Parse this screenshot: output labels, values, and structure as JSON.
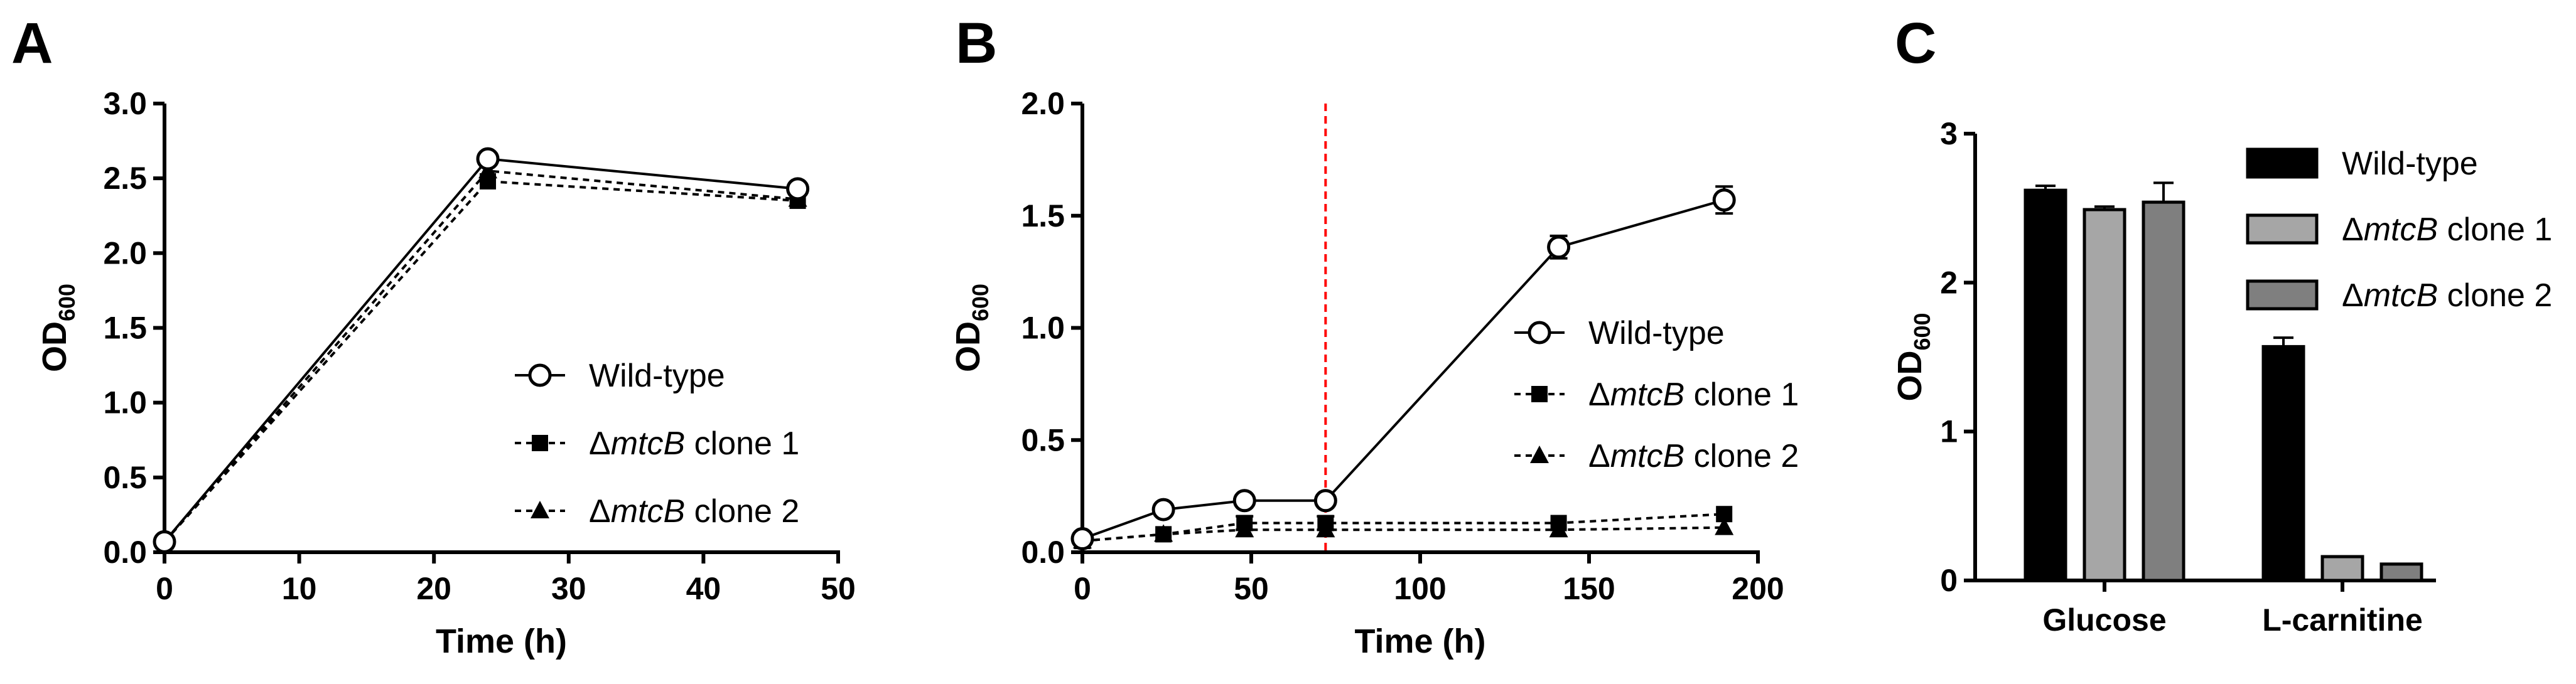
{
  "chart_data": [
    {
      "panel_label": "A",
      "type": "line",
      "xlabel": "Time (h)",
      "ylabel_main": "OD",
      "ylabel_sub": "600",
      "xlim": [
        0,
        50
      ],
      "ylim": [
        0,
        3.0
      ],
      "xticks": [
        "0",
        "10",
        "20",
        "30",
        "40",
        "50"
      ],
      "yticks": [
        "0.0",
        "0.5",
        "1.0",
        "1.5",
        "2.0",
        "2.5",
        "3.0"
      ],
      "series": [
        {
          "name": "Wild-type",
          "marker": "open-circle",
          "dashed": false,
          "x": [
            0,
            24,
            47
          ],
          "y": [
            0.07,
            2.63,
            2.43
          ]
        },
        {
          "name_prefix": "Δ",
          "name_italic": "mtcB",
          "name_suffix": " clone 1",
          "marker": "square",
          "dashed": true,
          "x": [
            0,
            24,
            47
          ],
          "y": [
            0.07,
            2.48,
            2.35
          ]
        },
        {
          "name_prefix": "Δ",
          "name_italic": "mtcB",
          "name_suffix": " clone 2",
          "marker": "triangle",
          "dashed": true,
          "x": [
            0,
            24,
            47
          ],
          "y": [
            0.07,
            2.55,
            2.36
          ]
        }
      ]
    },
    {
      "panel_label": "B",
      "type": "line",
      "xlabel": "Time (h)",
      "ylabel_main": "OD",
      "ylabel_sub": "600",
      "xlim": [
        0,
        200
      ],
      "ylim": [
        0,
        2.0
      ],
      "xticks": [
        "0",
        "50",
        "100",
        "150",
        "200"
      ],
      "yticks": [
        "0.0",
        "0.5",
        "1.0",
        "1.5",
        "2.0"
      ],
      "vline_x": 72,
      "series": [
        {
          "name": "Wild-type",
          "marker": "open-circle",
          "dashed": false,
          "x": [
            0,
            24,
            48,
            72,
            141,
            190
          ],
          "y": [
            0.06,
            0.19,
            0.23,
            0.23,
            1.36,
            1.57
          ],
          "err": [
            0.01,
            0.01,
            0.01,
            0.01,
            0.05,
            0.06
          ]
        },
        {
          "name_prefix": "Δ",
          "name_italic": "mtcB",
          "name_suffix": " clone 1",
          "marker": "square",
          "dashed": true,
          "x": [
            0,
            24,
            48,
            72,
            141,
            190
          ],
          "y": [
            0.05,
            0.08,
            0.13,
            0.13,
            0.13,
            0.17
          ],
          "err": [
            0.01,
            0.01,
            0.03,
            0.03,
            0.02,
            0.02
          ]
        },
        {
          "name_prefix": "Δ",
          "name_italic": "mtcB",
          "name_suffix": " clone 2",
          "marker": "triangle",
          "dashed": true,
          "x": [
            0,
            24,
            48,
            72,
            141,
            190
          ],
          "y": [
            0.05,
            0.08,
            0.1,
            0.1,
            0.1,
            0.11
          ],
          "err": [
            0.01,
            0.01,
            0.01,
            0.02,
            0.01,
            0.02
          ]
        }
      ]
    },
    {
      "panel_label": "C",
      "type": "bar",
      "ylabel_main": "OD",
      "ylabel_sub": "600",
      "ylim": [
        0,
        3
      ],
      "yticks": [
        "0",
        "1",
        "2",
        "3"
      ],
      "categories": [
        "Glucose",
        "L-carnitine"
      ],
      "series": [
        {
          "name": "Wild-type",
          "color": "#000000",
          "values": [
            2.62,
            1.57
          ],
          "err": [
            0.03,
            0.06
          ]
        },
        {
          "name_prefix": "Δ",
          "name_italic": "mtcB",
          "name_suffix": " clone 1",
          "color": "#a6a6a6",
          "values": [
            2.49,
            0.16
          ],
          "err": [
            0.02,
            0.01
          ]
        },
        {
          "name_prefix": "Δ",
          "name_italic": "mtcB",
          "name_suffix": " clone 2",
          "color": "#7f7f7f",
          "values": [
            2.54,
            0.11
          ],
          "err": [
            0.13,
            0.01
          ]
        }
      ]
    }
  ]
}
